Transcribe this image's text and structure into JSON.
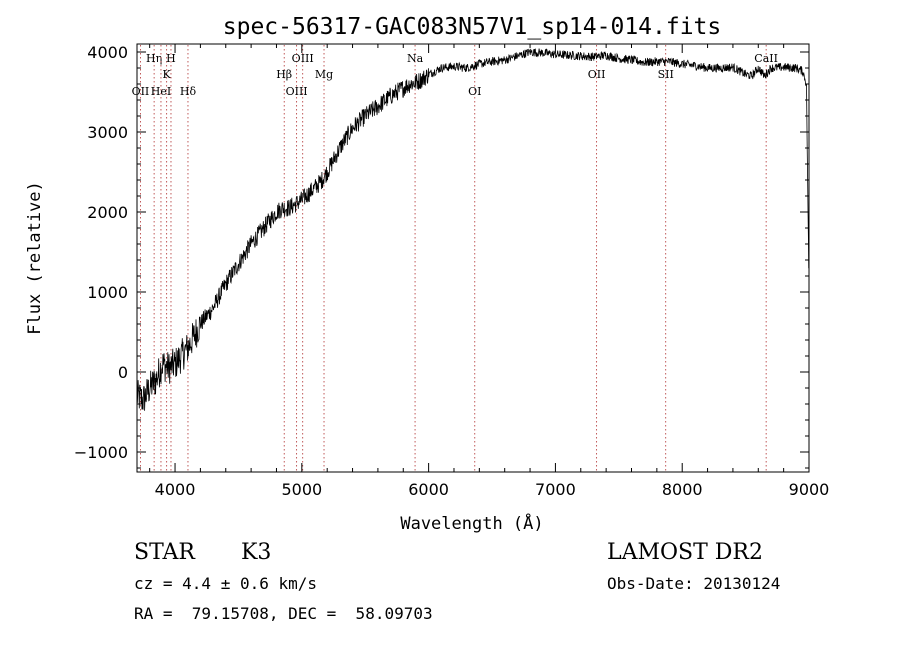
{
  "chart_data": {
    "type": "line",
    "title": "spec-56317-GAC083N57V1_sp14-014.fits",
    "xlabel": "Wavelength (Å)",
    "ylabel": "Flux (relative)",
    "xlim": [
      3700,
      9000
    ],
    "ylim": [
      -1250,
      4100
    ],
    "xticks": [
      4000,
      5000,
      6000,
      7000,
      8000,
      9000
    ],
    "yticks": [
      -1000,
      0,
      1000,
      2000,
      3000,
      4000
    ],
    "grid": false,
    "lines": [
      {
        "label": "OII",
        "x": 3727,
        "row": 2
      },
      {
        "label": "Hη",
        "x": 3835,
        "row": 0
      },
      {
        "label": "HeI",
        "x": 3889,
        "row": 2
      },
      {
        "label": "K",
        "x": 3934,
        "row": 1
      },
      {
        "label": "H",
        "x": 3968,
        "row": 0
      },
      {
        "label": "Hδ",
        "x": 4102,
        "row": 2
      },
      {
        "label": "Hβ",
        "x": 4861,
        "row": 1
      },
      {
        "label": "OIII",
        "x": 4959,
        "row": 2
      },
      {
        "label": "OIII",
        "x": 5007,
        "row": 0
      },
      {
        "label": "Mg",
        "x": 5175,
        "row": 1
      },
      {
        "label": "Na",
        "x": 5893,
        "row": 0
      },
      {
        "label": "OI",
        "x": 6364,
        "row": 2
      },
      {
        "label": "OII",
        "x": 7325,
        "row": 1
      },
      {
        "label": "SII",
        "x": 7870,
        "row": 1
      },
      {
        "label": "CaII",
        "x": 8662,
        "row": 0
      }
    ],
    "series": [
      {
        "x": [
          3700,
          3750,
          3800,
          3850,
          3900,
          3950,
          4000,
          4050,
          4100,
          4200,
          4300,
          4400,
          4500,
          4600,
          4700,
          4800,
          4850,
          4900,
          5000,
          5100,
          5150,
          5200,
          5300,
          5400,
          5500,
          5600,
          5700,
          5800,
          5850,
          5900,
          5950,
          6000,
          6100,
          6200,
          6300,
          6400,
          6500,
          6600,
          6700,
          6800,
          6900,
          7000,
          7100,
          7200,
          7300,
          7400,
          7500,
          7600,
          7700,
          7800,
          7900,
          8000,
          8100,
          8200,
          8300,
          8400,
          8500,
          8550,
          8600,
          8650,
          8700,
          8800,
          8900,
          8950,
          8980,
          9000
        ],
        "y": [
          -300,
          -350,
          -200,
          -100,
          100,
          50,
          100,
          200,
          300,
          600,
          800,
          1100,
          1350,
          1600,
          1800,
          2000,
          2050,
          2050,
          2150,
          2300,
          2380,
          2500,
          2800,
          3050,
          3200,
          3320,
          3450,
          3550,
          3600,
          3620,
          3660,
          3720,
          3800,
          3820,
          3800,
          3850,
          3880,
          3900,
          3950,
          4000,
          3990,
          3970,
          3960,
          3950,
          3940,
          3960,
          3920,
          3900,
          3870,
          3880,
          3880,
          3850,
          3830,
          3800,
          3800,
          3810,
          3720,
          3700,
          3800,
          3700,
          3800,
          3810,
          3800,
          3760,
          3600,
          1000
        ]
      }
    ]
  },
  "info": {
    "class": "STAR",
    "subclass": "K3",
    "survey": "LAMOST DR2",
    "cz": "cz = 4.4 ± 0.6 km/s",
    "obs_date": "Obs-Date: 20130124",
    "coords": "RA =  79.15708, DEC =  58.09703"
  }
}
